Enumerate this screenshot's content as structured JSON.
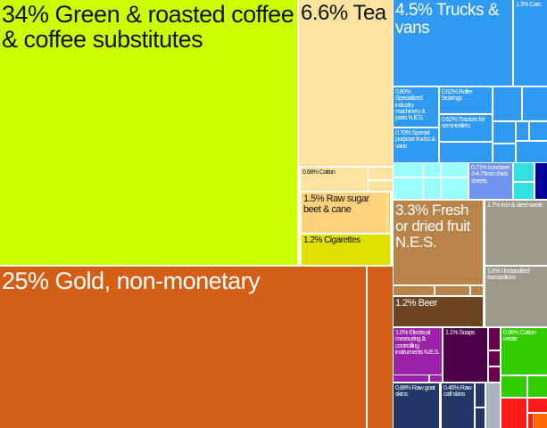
{
  "chart_data": {
    "type": "treemap",
    "unit": "% of exports",
    "items": [
      {
        "label": "34% Green & roasted coffee & coffee substitutes",
        "value": 34,
        "color": "#ccff00",
        "text_color": "#111111"
      },
      {
        "label": "25% Gold, non-monetary",
        "value": 25,
        "color": "#d35f17",
        "text_color": "#ffffff"
      },
      {
        "label": "6.6% Tea",
        "value": 6.6,
        "color": "#fde3a0",
        "text_color": "#111111"
      },
      {
        "label": "0.68% Cotton",
        "value": 0.68,
        "color": "#fde3a0",
        "text_color": "#111111"
      },
      {
        "label": "1.5% Raw sugar beet & cane",
        "value": 1.5,
        "color": "#fdd27a",
        "text_color": "#111111"
      },
      {
        "label": "1.2% Cigarettes",
        "value": 1.2,
        "color": "#e0e000",
        "text_color": "#111111"
      },
      {
        "label": "4.5% Trucks & vans",
        "value": 4.5,
        "color": "#2e9af2",
        "text_color": "#ffffff"
      },
      {
        "label": "1.3% Cars",
        "value": 1.3,
        "color": "#2e9af2",
        "text_color": "#ffffff"
      },
      {
        "label": "0.80% Specialized industry machinery & parts N.E.S.",
        "value": 0.8,
        "color": "#2e9af2",
        "text_color": "#ffffff"
      },
      {
        "label": "0.62% Roller bearings",
        "value": 0.62,
        "color": "#2e9af2",
        "text_color": "#ffffff"
      },
      {
        "label": "0.62% Tractors for semi-trailers",
        "value": 0.62,
        "color": "#2e9af2",
        "text_color": "#ffffff"
      },
      {
        "label": "0.70% Special purpose trucks & vans",
        "value": 0.7,
        "color": "#2e9af2",
        "text_color": "#ffffff"
      },
      {
        "label": "0.71% Iron/steel 3-4.75mm thick sheets",
        "value": 0.71,
        "color": "#6f93ef",
        "text_color": "#ffffff"
      },
      {
        "label": "3.3% Fresh or dried fruit N.E.S.",
        "value": 3.3,
        "color": "#b8844a",
        "text_color": "#ffffff"
      },
      {
        "label": "1.2% Beer",
        "value": 1.2,
        "color": "#6b4421",
        "text_color": "#ffffff"
      },
      {
        "label": "1.7% Iron & steel waste",
        "value": 1.7,
        "color": "#9b9a8b",
        "text_color": "#ffffff"
      },
      {
        "label": "1.6% Unclassified transactions",
        "value": 1.6,
        "color": "#9b9a8b",
        "text_color": "#ffffff"
      },
      {
        "label": "1.0% Electrical measuring & controlling instruments N.E.S.",
        "value": 1.0,
        "color": "#9b22a8",
        "text_color": "#ffffff"
      },
      {
        "label": "1.1% Soaps",
        "value": 1.1,
        "color": "#4c0048",
        "text_color": "#ffffff"
      },
      {
        "label": "0.96% Cotton waste",
        "value": 0.96,
        "color": "#33cc00",
        "text_color": "#ffffff"
      },
      {
        "label": "0.88% Raw goat skins",
        "value": 0.88,
        "color": "#223766",
        "text_color": "#ffffff"
      },
      {
        "label": "0.46% Raw calf skins",
        "value": 0.46,
        "color": "#223766",
        "text_color": "#ffffff"
      }
    ]
  }
}
